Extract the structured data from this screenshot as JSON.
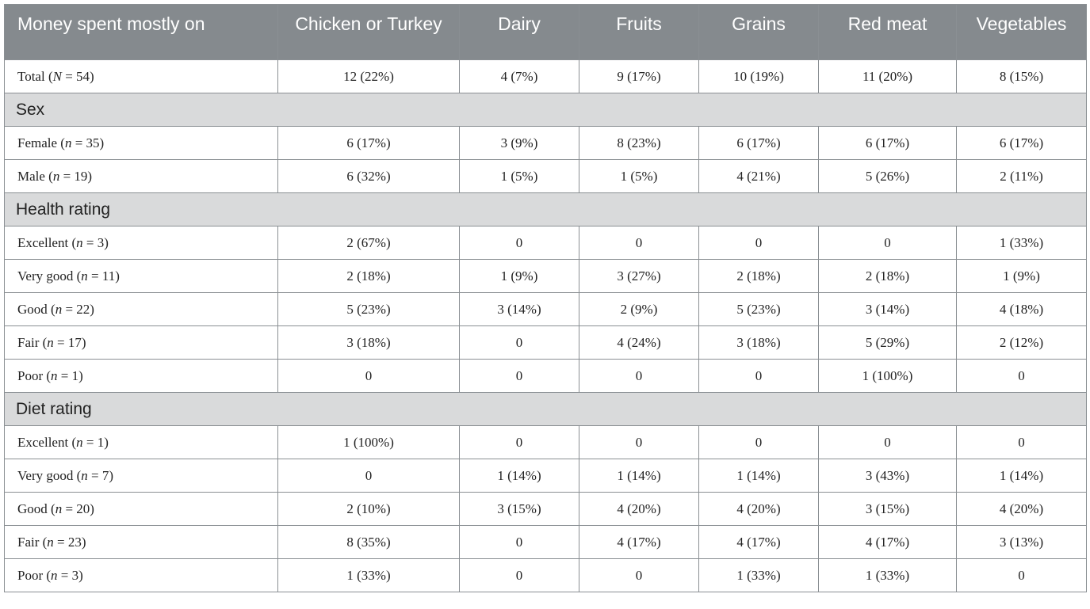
{
  "header": {
    "col_label": "Money spent mostly on",
    "columns": [
      "Chicken or Turkey",
      "Dairy",
      "Fruits",
      "Grains",
      "Red meat",
      "Vegetables"
    ]
  },
  "rows": [
    {
      "kind": "data",
      "pre": "Total (",
      "var": "N",
      "post": " = 54)",
      "cells": [
        "12 (22%)",
        "4 (7%)",
        "9 (17%)",
        "10 (19%)",
        "11 (20%)",
        "8 (15%)"
      ]
    },
    {
      "kind": "section",
      "label": "Sex"
    },
    {
      "kind": "data",
      "pre": "Female (",
      "var": "n",
      "post": " = 35)",
      "cells": [
        "6 (17%)",
        "3 (9%)",
        "8 (23%)",
        "6 (17%)",
        "6 (17%)",
        "6 (17%)"
      ]
    },
    {
      "kind": "data",
      "pre": "Male (",
      "var": "n",
      "post": " = 19)",
      "cells": [
        "6 (32%)",
        "1 (5%)",
        "1 (5%)",
        "4 (21%)",
        "5 (26%)",
        "2 (11%)"
      ]
    },
    {
      "kind": "section",
      "label": "Health rating"
    },
    {
      "kind": "data",
      "pre": "Excellent (",
      "var": "n",
      "post": " = 3)",
      "cells": [
        "2 (67%)",
        "0",
        "0",
        "0",
        "0",
        "1 (33%)"
      ]
    },
    {
      "kind": "data",
      "pre": "Very good (",
      "var": "n",
      "post": " = 11)",
      "cells": [
        "2 (18%)",
        "1 (9%)",
        "3 (27%)",
        "2 (18%)",
        "2 (18%)",
        "1 (9%)"
      ]
    },
    {
      "kind": "data",
      "pre": "Good (",
      "var": "n",
      "post": " = 22)",
      "cells": [
        "5 (23%)",
        "3 (14%)",
        "2 (9%)",
        "5 (23%)",
        "3 (14%)",
        "4 (18%)"
      ]
    },
    {
      "kind": "data",
      "pre": "Fair (",
      "var": "n",
      "post": " = 17)",
      "cells": [
        "3 (18%)",
        "0",
        "4 (24%)",
        "3 (18%)",
        "5 (29%)",
        "2 (12%)"
      ]
    },
    {
      "kind": "data",
      "pre": "Poor (",
      "var": "n",
      "post": " = 1)",
      "cells": [
        "0",
        "0",
        "0",
        "0",
        "1 (100%)",
        "0"
      ]
    },
    {
      "kind": "section",
      "label": "Diet rating"
    },
    {
      "kind": "data",
      "pre": "Excellent (",
      "var": "n",
      "post": " = 1)",
      "cells": [
        "1 (100%)",
        "0",
        "0",
        "0",
        "0",
        "0"
      ]
    },
    {
      "kind": "data",
      "pre": "Very good (",
      "var": "n",
      "post": " = 7)",
      "cells": [
        "0",
        "1 (14%)",
        "1 (14%)",
        "1 (14%)",
        "3 (43%)",
        "1 (14%)"
      ]
    },
    {
      "kind": "data",
      "pre": "Good (",
      "var": "n",
      "post": " = 20)",
      "cells": [
        "2 (10%)",
        "3 (15%)",
        "4 (20%)",
        "4 (20%)",
        "3 (15%)",
        "4 (20%)"
      ]
    },
    {
      "kind": "data",
      "pre": "Fair (",
      "var": "n",
      "post": " = 23)",
      "cells": [
        "8 (35%)",
        "0",
        "4 (17%)",
        "4 (17%)",
        "4 (17%)",
        "3 (13%)"
      ]
    },
    {
      "kind": "data",
      "pre": "Poor (",
      "var": "n",
      "post": " = 3)",
      "cells": [
        "1 (33%)",
        "0",
        "0",
        "1 (33%)",
        "1 (33%)",
        "0"
      ]
    }
  ]
}
